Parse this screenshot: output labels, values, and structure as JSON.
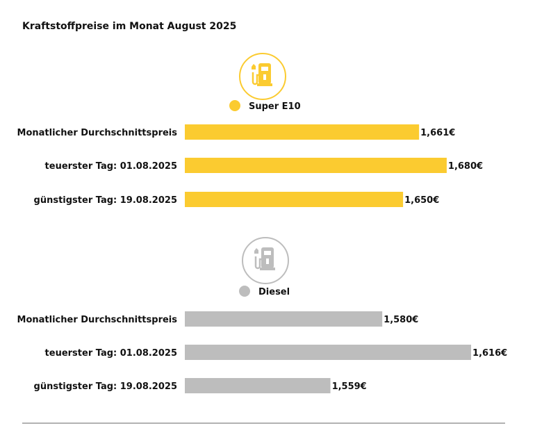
{
  "chart_data": {
    "type": "bar",
    "orientation": "horizontal",
    "title": "Kraftstoffpreise im Monat August 2025",
    "xlim_start": 1.5,
    "grid": false,
    "categories": [
      "Monatlicher Durchschnittspreis",
      "teuerster Tag: 01.08.2025",
      "günstigster Tag: 19.08.2025"
    ],
    "series": [
      {
        "name": "Super E10",
        "color": "#FBCB30",
        "icon": "fuel-pump-icon",
        "values": [
          1.661,
          1.68,
          1.65
        ],
        "value_labels": [
          "1,661€",
          "1,680€",
          "1,650€"
        ]
      },
      {
        "name": "Diesel",
        "color": "#BDBDBD",
        "icon": "fuel-pump-icon",
        "values": [
          1.58,
          1.616,
          1.559
        ],
        "value_labels": [
          "1,580€",
          "1,616€",
          "1,559€"
        ]
      }
    ]
  }
}
